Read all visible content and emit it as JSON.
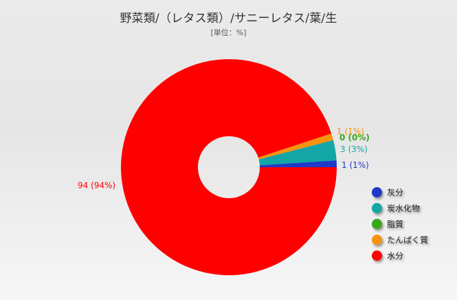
{
  "chart_data": {
    "type": "pie",
    "title": "野菜類/（レタス類）/サニーレタス/葉/生",
    "subtitle": "[単位：%]",
    "slices": [
      {
        "name": "灰分",
        "value": 1,
        "label": "1 (1%)",
        "color": "#1f39c8"
      },
      {
        "name": "炭水化物",
        "value": 3,
        "label": "3 (3%)",
        "color": "#13a6a6"
      },
      {
        "name": "脂質",
        "value": 0,
        "label": "0 (0%)",
        "color": "#39a719"
      },
      {
        "name": "たんぱく質",
        "value": 1,
        "label": "1 (1%)",
        "color": "#f7930f"
      },
      {
        "name": "水分",
        "value": 94,
        "label": "94 (94%)",
        "color": "#ff0000"
      }
    ],
    "legend_position": "right"
  }
}
